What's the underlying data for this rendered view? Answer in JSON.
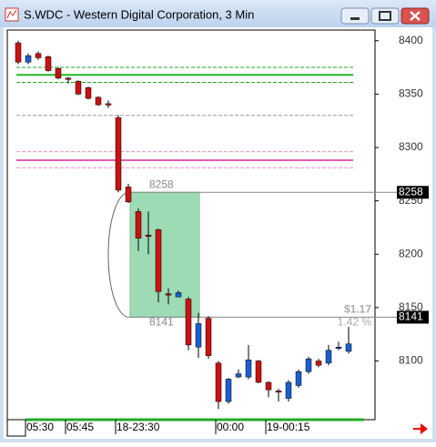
{
  "window_title": "S.WDC - Western Digital Corporation, 3 Min",
  "chart_data": {
    "type": "candlestick",
    "categories": [
      null,
      "05:30",
      null,
      null,
      null,
      "05:45",
      null,
      null,
      null,
      null,
      "18-23:30",
      null,
      null,
      null,
      null,
      null,
      null,
      null,
      null,
      null,
      "00:00",
      null,
      null,
      null,
      null,
      "19-00:15",
      null,
      null,
      null,
      null,
      null,
      null,
      null,
      null
    ],
    "open": [
      8398,
      8380,
      8388,
      8385,
      8374,
      8365,
      8362,
      8356,
      8347,
      8341,
      8328,
      8263,
      8240,
      8218,
      8223,
      8163,
      8160,
      8158,
      8113,
      8140,
      8098,
      8062,
      8085,
      8085,
      8100,
      8080,
      8072,
      8065,
      8077,
      8090,
      8100,
      8098,
      8112,
      8109
    ],
    "high": [
      8400,
      8388,
      8390,
      8386,
      8375,
      8366,
      8363,
      8357,
      8348,
      8344,
      8330,
      8266,
      8243,
      8240,
      8224,
      8168,
      8166,
      8160,
      8145,
      8142,
      8100,
      8084,
      8092,
      8115,
      8101,
      8081,
      8074,
      8082,
      8092,
      8104,
      8102,
      8115,
      8118,
      8132
    ],
    "low": [
      8378,
      8378,
      8382,
      8371,
      8364,
      8360,
      8349,
      8345,
      8339,
      8337,
      8258,
      8248,
      8203,
      8200,
      8155,
      8153,
      8160,
      8110,
      8103,
      8102,
      8055,
      8060,
      8084,
      8083,
      8079,
      8066,
      8062,
      8062,
      8075,
      8088,
      8094,
      8096,
      8110,
      8107
    ],
    "close": [
      8380,
      8386,
      8384,
      8372,
      8365,
      8364,
      8350,
      8346,
      8340,
      8340,
      8260,
      8249,
      8215,
      8217,
      8165,
      8162,
      8164,
      8115,
      8135,
      8105,
      8062,
      8083,
      8088,
      8101,
      8080,
      8073,
      8071,
      8080,
      8090,
      8102,
      8096,
      8110,
      8113,
      8116
    ],
    "up_color": "#1a5fd0",
    "down_color": "#cc1111",
    "ylim": [
      8045,
      8410
    ],
    "yticks": [
      8100,
      8150,
      8200,
      8250,
      8300,
      8350,
      8400
    ],
    "levels": [
      {
        "value": 8375,
        "color": "#22aa22",
        "style": "dashed"
      },
      {
        "value": 8368,
        "color": "#22bb22",
        "style": "solid"
      },
      {
        "value": 8361,
        "color": "#22aa22",
        "style": "dashed"
      },
      {
        "value": 8330,
        "color": "#999999",
        "style": "dashed"
      },
      {
        "value": 8296,
        "color": "#e890c8",
        "style": "dashed"
      },
      {
        "value": 8288,
        "color": "#e060b0",
        "style": "solid"
      },
      {
        "value": 8281,
        "color": "#e890c8",
        "style": "dashed"
      }
    ],
    "markers": [
      {
        "value": 8258,
        "label": "8258"
      },
      {
        "value": 8141,
        "label": "8141"
      }
    ],
    "annotations": [
      "$1.17",
      "1.42 %"
    ]
  }
}
